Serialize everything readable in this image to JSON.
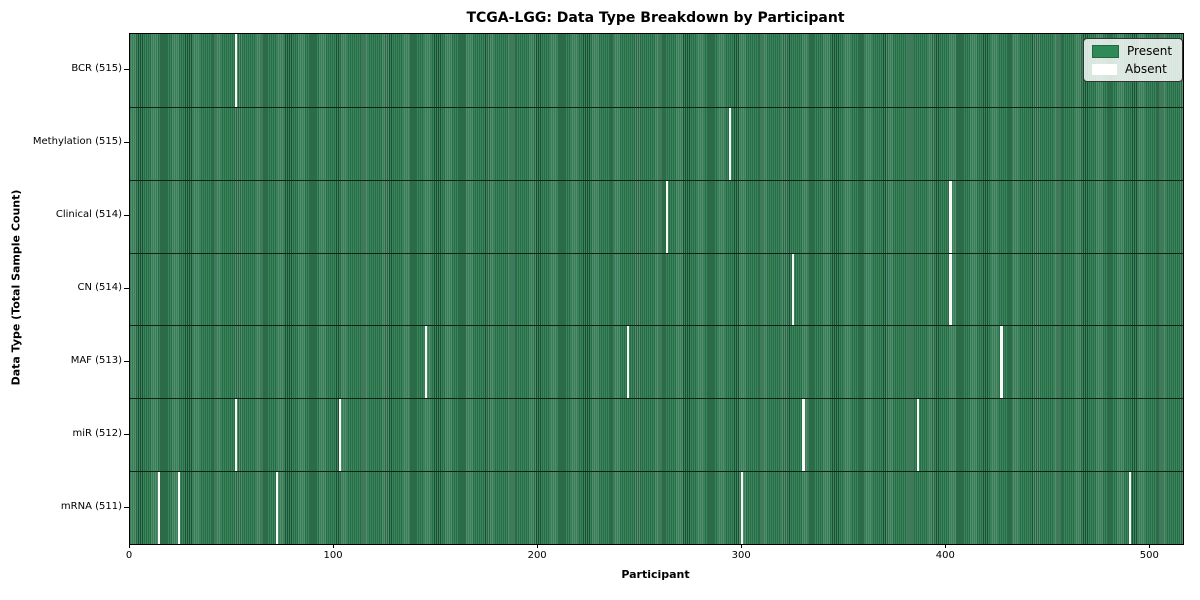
{
  "chart_data": {
    "type": "heatmap",
    "title": "TCGA-LGG: Data Type Breakdown by Participant",
    "xlabel": "Participant",
    "ylabel": "Data Type (Total Sample Count)",
    "x_ticks": [
      0,
      100,
      200,
      300,
      400,
      500
    ],
    "x_range": [
      0,
      516
    ],
    "grid": false,
    "legend_position": "upper right",
    "rows": [
      {
        "data_type": "BCR",
        "label": "BCR (515)",
        "present_count": 515,
        "absent_participants": [
          52
        ]
      },
      {
        "data_type": "Methylation",
        "label": "Methylation (515)",
        "present_count": 515,
        "absent_participants": [
          294
        ]
      },
      {
        "data_type": "Clinical",
        "label": "Clinical (514)",
        "present_count": 514,
        "absent_participants": [
          263,
          402
        ]
      },
      {
        "data_type": "CN",
        "label": "CN (514)",
        "present_count": 514,
        "absent_participants": [
          325,
          402
        ]
      },
      {
        "data_type": "MAF",
        "label": "MAF (513)",
        "present_count": 513,
        "absent_participants": [
          145,
          244,
          427
        ]
      },
      {
        "data_type": "miR",
        "label": "miR (512)",
        "present_count": 512,
        "absent_participants": [
          52,
          103,
          330,
          386
        ]
      },
      {
        "data_type": "mRNA",
        "label": "mRNA (511)",
        "present_count": 511,
        "absent_participants": [
          14,
          24,
          72,
          300,
          490
        ]
      }
    ],
    "legend": [
      {
        "label": "Present",
        "color": "#2e8b57"
      },
      {
        "label": "Absent",
        "color": "#ffffff"
      }
    ],
    "colors": {
      "present": "#2e8b57",
      "present_stripe_dark": "#1e4f35",
      "absent": "#fafafa",
      "row_separator": "#0e2416",
      "axis": "#000000"
    }
  }
}
